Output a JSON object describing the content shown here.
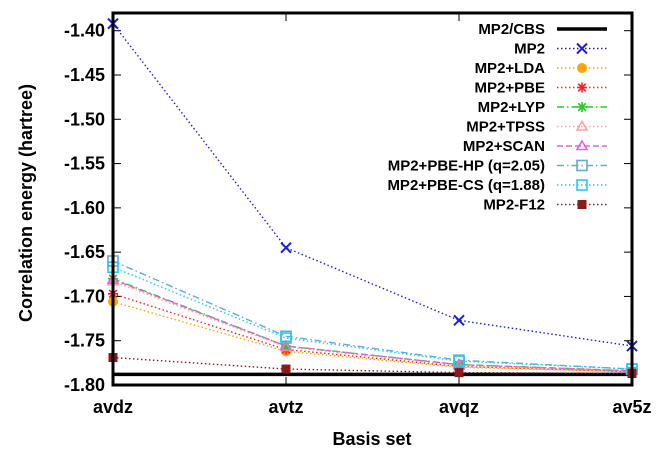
{
  "chart_data": {
    "type": "line",
    "xlabel": "Basis set",
    "ylabel": "Correlation energy (hartree)",
    "categories": [
      "avdz",
      "avtz",
      "avqz",
      "av5z"
    ],
    "ylim": [
      -1.8,
      -1.38
    ],
    "yticks": [
      -1.4,
      -1.45,
      -1.5,
      -1.55,
      -1.6,
      -1.65,
      -1.7,
      -1.75,
      -1.8
    ],
    "ytick_labels": [
      "-1.40",
      "-1.45",
      "-1.50",
      "-1.55",
      "-1.60",
      "-1.65",
      "-1.70",
      "-1.75",
      "-1.80"
    ],
    "grid": false,
    "legend_position": "top-right",
    "reference": {
      "name": "MP2/CBS",
      "value": -1.788,
      "color": "#000000"
    },
    "series": [
      {
        "name": "MP2",
        "color": "#1f1fd1",
        "marker": "x",
        "dash": "dot",
        "values": [
          -1.392,
          -1.645,
          -1.727,
          -1.756
        ]
      },
      {
        "name": "MP2+LDA",
        "color": "#ffa500",
        "marker": "circle",
        "dash": "dot",
        "values": [
          -1.706,
          -1.762,
          -1.78,
          -1.785
        ]
      },
      {
        "name": "MP2+PBE",
        "color": "#ff2020",
        "marker": "star",
        "dash": "dot",
        "values": [
          -1.697,
          -1.76,
          -1.779,
          -1.785
        ]
      },
      {
        "name": "MP2+LYP",
        "color": "#22cc22",
        "marker": "star",
        "dash": "dashdot",
        "values": [
          -1.68,
          -1.756,
          -1.777,
          -1.784
        ]
      },
      {
        "name": "MP2+TPSS",
        "color": "#ffa0a0",
        "marker": "triangle",
        "dash": "dot",
        "values": [
          -1.683,
          -1.757,
          -1.778,
          -1.784
        ]
      },
      {
        "name": "MP2+SCAN",
        "color": "#dd66dd",
        "marker": "triangle",
        "dash": "dash",
        "values": [
          -1.681,
          -1.756,
          -1.777,
          -1.784
        ]
      },
      {
        "name": "MP2+PBE-HP (q=2.05)",
        "color": "#66aacc",
        "marker": "square",
        "dash": "dashdot",
        "values": [
          -1.66,
          -1.745,
          -1.772,
          -1.782
        ]
      },
      {
        "name": "MP2+PBE-CS (q=1.88)",
        "color": "#22ccee",
        "marker": "square",
        "dash": "dot",
        "values": [
          -1.667,
          -1.747,
          -1.773,
          -1.782
        ]
      },
      {
        "name": "MP2-F12",
        "color": "#8b1a1a",
        "marker": "filled-square",
        "dash": "dot",
        "values": [
          -1.769,
          -1.782,
          -1.786,
          -1.787
        ]
      }
    ]
  }
}
